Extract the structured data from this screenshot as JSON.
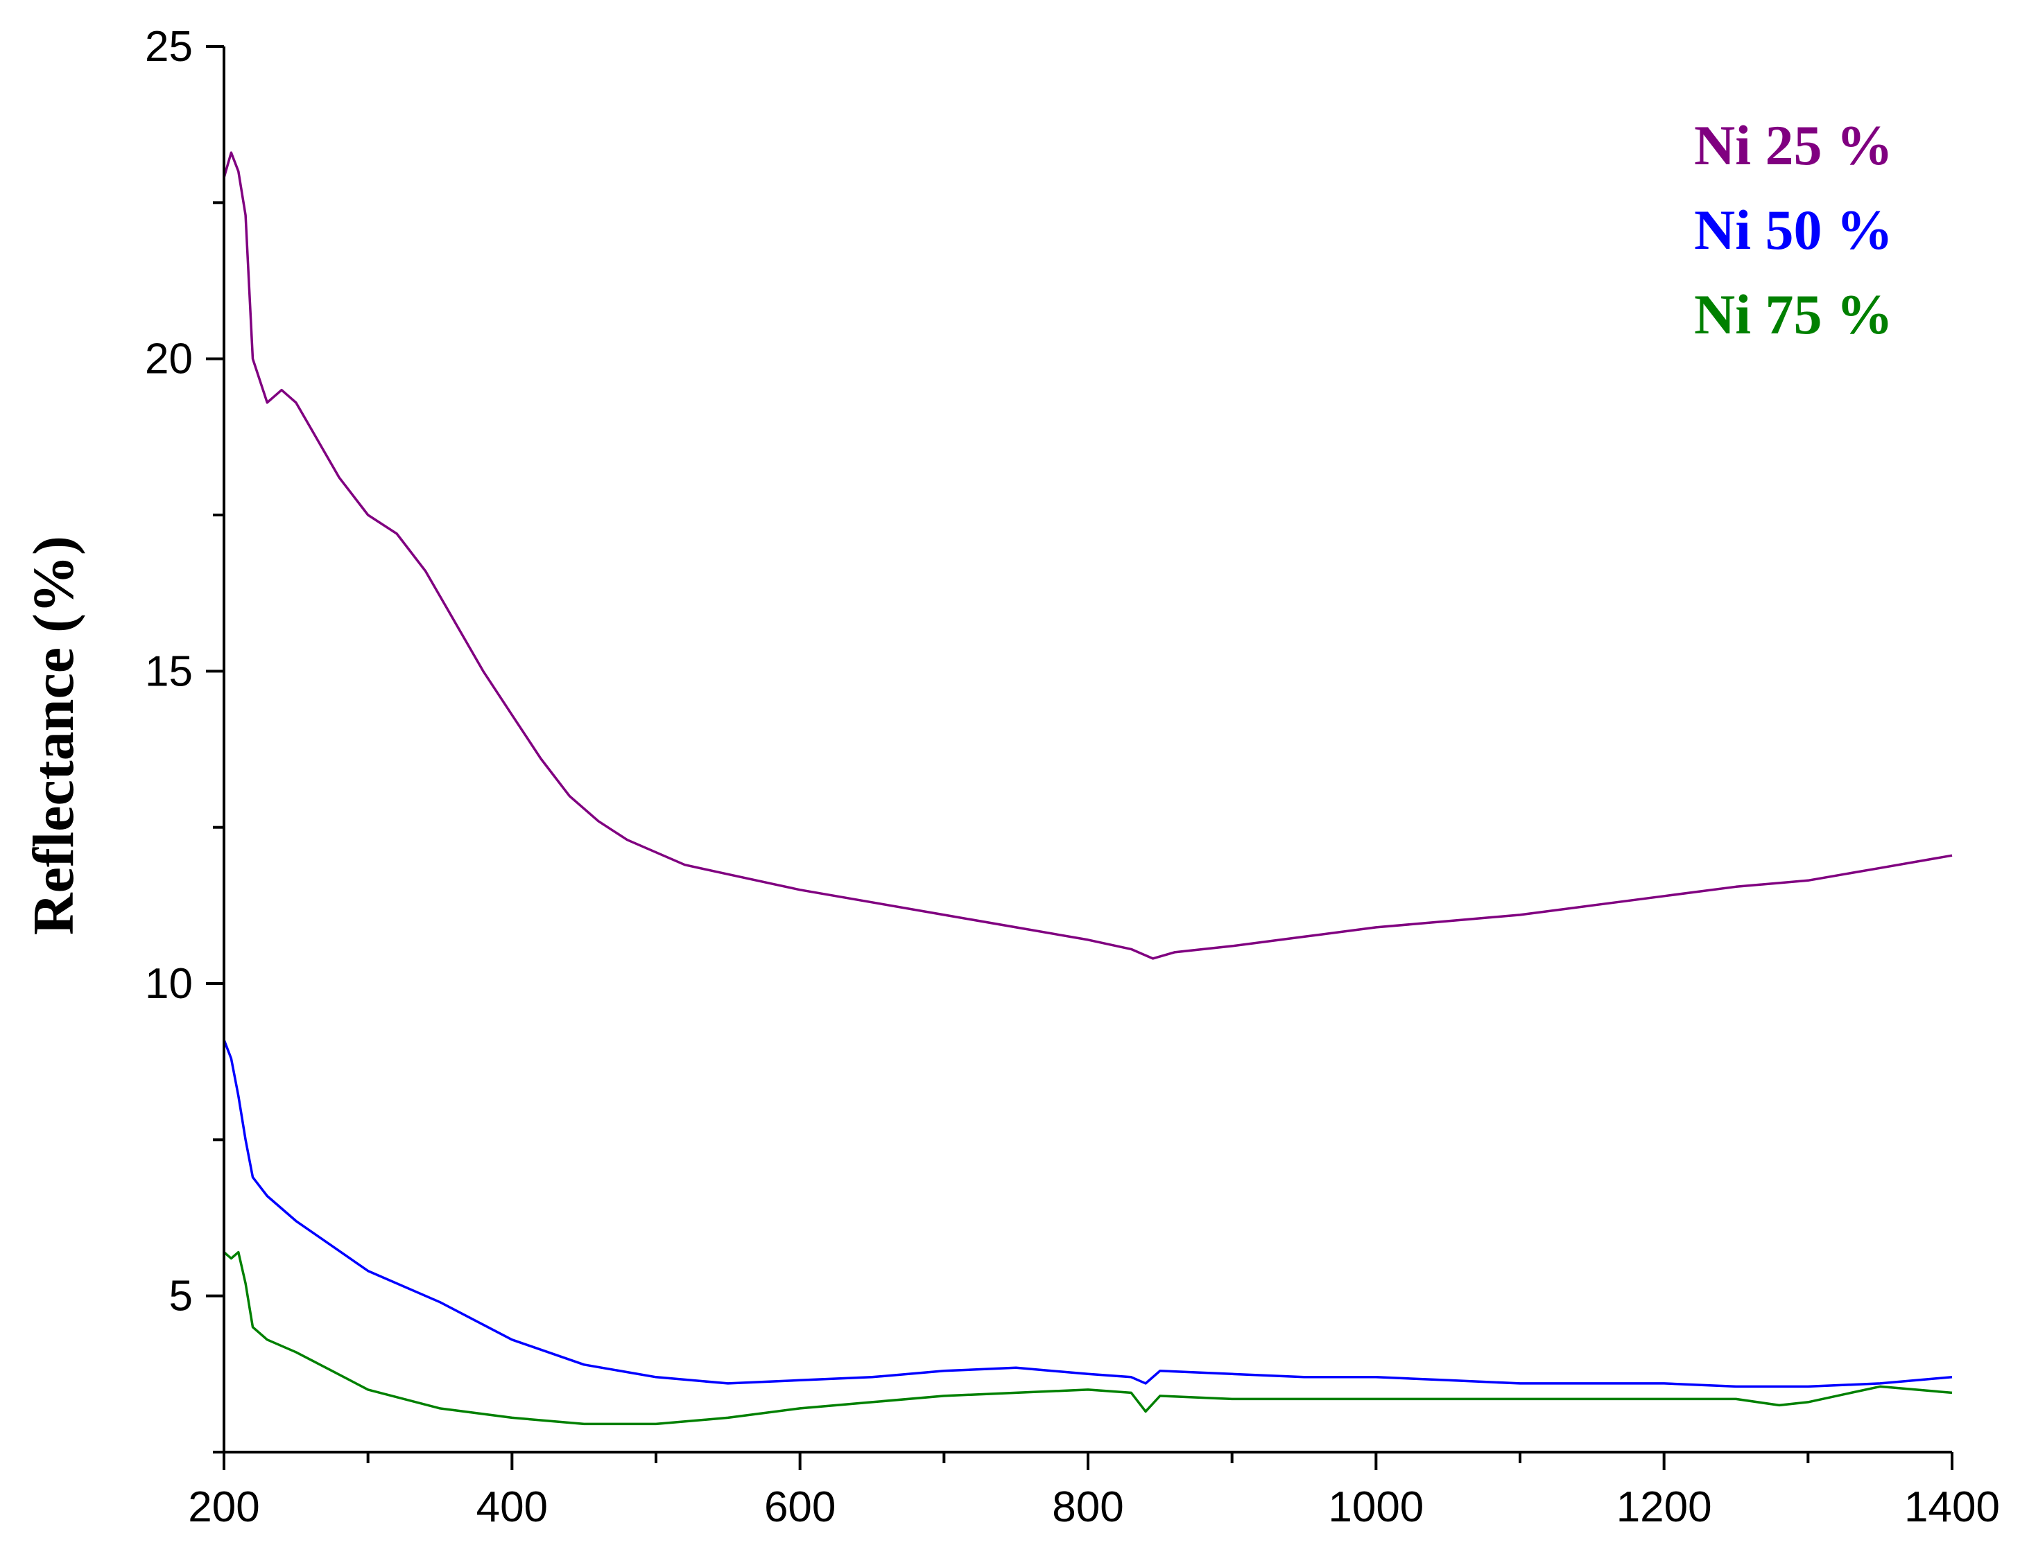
{
  "chart_data": {
    "type": "line",
    "title": "",
    "xlabel": "",
    "ylabel": "Reflectance (%)",
    "xlim": [
      200,
      1400
    ],
    "ylim": [
      2.5,
      25
    ],
    "xticks": [
      200,
      400,
      600,
      800,
      1000,
      1200,
      1400
    ],
    "yticks": [
      5,
      10,
      15,
      20,
      25
    ],
    "x_minor_step": 100,
    "y_minor_step": 2.5,
    "grid": false,
    "legend_placement": "top-right",
    "series": [
      {
        "name": "Ni 25 %",
        "color": "#800080",
        "x": [
          200,
          205,
          210,
          215,
          220,
          230,
          240,
          250,
          260,
          280,
          300,
          320,
          340,
          360,
          380,
          400,
          420,
          440,
          460,
          480,
          500,
          520,
          540,
          560,
          580,
          600,
          650,
          700,
          750,
          800,
          830,
          845,
          860,
          900,
          950,
          1000,
          1050,
          1100,
          1150,
          1200,
          1250,
          1300,
          1350,
          1400
        ],
        "y": [
          22.9,
          23.3,
          23.0,
          22.3,
          20.0,
          19.3,
          19.5,
          19.3,
          18.9,
          18.1,
          17.5,
          17.2,
          16.6,
          15.8,
          15.0,
          14.3,
          13.6,
          13.0,
          12.6,
          12.3,
          12.1,
          11.9,
          11.8,
          11.7,
          11.6,
          11.5,
          11.3,
          11.1,
          10.9,
          10.7,
          10.55,
          10.4,
          10.5,
          10.6,
          10.75,
          10.9,
          11.0,
          11.1,
          11.25,
          11.4,
          11.55,
          11.65,
          11.85,
          12.05
        ]
      },
      {
        "name": "Ni 50 %",
        "color": "#0000ff",
        "x": [
          200,
          205,
          210,
          215,
          220,
          230,
          250,
          275,
          300,
          350,
          400,
          450,
          500,
          550,
          600,
          650,
          700,
          750,
          800,
          830,
          840,
          850,
          900,
          950,
          1000,
          1050,
          1100,
          1150,
          1200,
          1250,
          1300,
          1350,
          1400
        ],
        "y": [
          9.1,
          8.8,
          8.2,
          7.5,
          6.9,
          6.6,
          6.2,
          5.8,
          5.4,
          4.9,
          4.3,
          3.9,
          3.7,
          3.6,
          3.65,
          3.7,
          3.8,
          3.85,
          3.75,
          3.7,
          3.6,
          3.8,
          3.75,
          3.7,
          3.7,
          3.65,
          3.6,
          3.6,
          3.6,
          3.55,
          3.55,
          3.6,
          3.7
        ]
      },
      {
        "name": "Ni 75 %",
        "color": "#008000",
        "x": [
          200,
          205,
          210,
          215,
          220,
          230,
          250,
          275,
          300,
          350,
          400,
          450,
          500,
          550,
          600,
          650,
          700,
          750,
          800,
          830,
          840,
          850,
          900,
          950,
          1000,
          1050,
          1100,
          1150,
          1200,
          1250,
          1280,
          1300,
          1350,
          1400
        ],
        "y": [
          5.7,
          5.6,
          5.7,
          5.2,
          4.5,
          4.3,
          4.1,
          3.8,
          3.5,
          3.2,
          3.05,
          2.95,
          2.95,
          3.05,
          3.2,
          3.3,
          3.4,
          3.45,
          3.5,
          3.45,
          3.15,
          3.4,
          3.35,
          3.35,
          3.35,
          3.35,
          3.35,
          3.35,
          3.35,
          3.35,
          3.25,
          3.3,
          3.55,
          3.45
        ]
      }
    ]
  }
}
